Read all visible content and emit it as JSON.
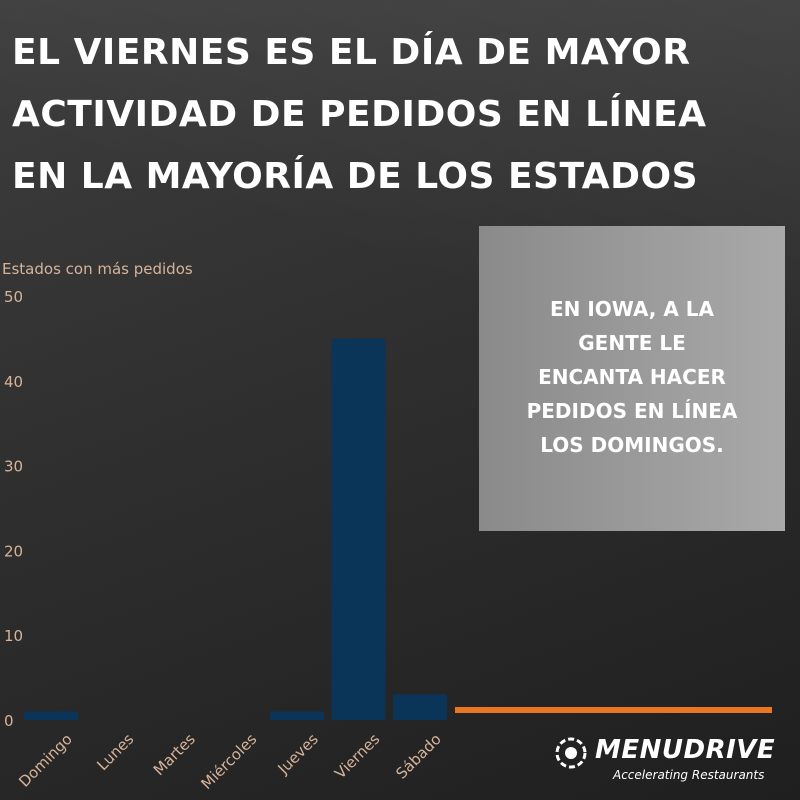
{
  "headline": {
    "lines": [
      "EL VIERNES ES EL DÍA DE MAYOR",
      "ACTIVIDAD DE PEDIDOS EN LÍNEA",
      "EN LA MAYORÍA DE LOS ESTADOS"
    ]
  },
  "callout": {
    "lines": [
      "EN IOWA, A LA",
      "GENTE LE",
      "ENCANTA HACER",
      "PEDIDOS EN LÍNEA",
      "LOS DOMINGOS."
    ]
  },
  "brand": {
    "name": "MENUDRIVE",
    "tagline": "Accelerating Restaurants"
  },
  "colors": {
    "bar": "#0a3559",
    "accent": "#e87722",
    "text": "#ffffff"
  },
  "chart_data": {
    "type": "bar",
    "ylabel": "Estados con más pedidos",
    "categories": [
      "Domingo",
      "Lunes",
      "Martes",
      "Miércoles",
      "Jueves",
      "Viernes",
      "Sábado"
    ],
    "values": [
      1,
      0,
      0,
      0,
      1,
      45,
      3
    ],
    "ylim": [
      0,
      50
    ],
    "yticks": [
      0,
      10,
      20,
      30,
      40,
      50
    ],
    "grid": false,
    "legend": "none"
  }
}
